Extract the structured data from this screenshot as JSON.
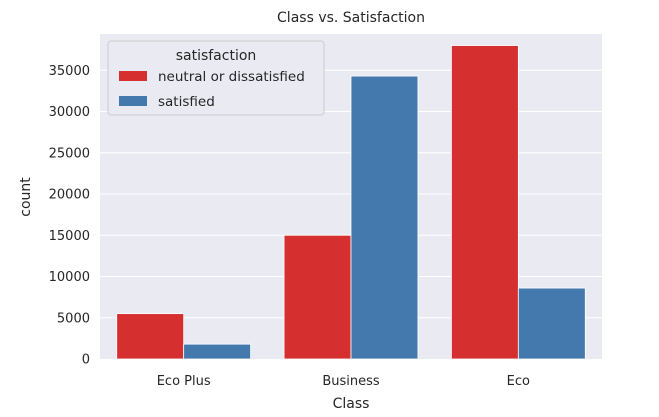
{
  "chart_data": {
    "type": "bar",
    "title": "Class vs. Satisfaction",
    "xlabel": "Class",
    "ylabel": "count",
    "categories": [
      "Eco Plus",
      "Business",
      "Eco"
    ],
    "series": [
      {
        "name": "neutral or dissatisfied",
        "values": [
          5500,
          15000,
          38000
        ],
        "color": "#d62f2f"
      },
      {
        "name": "satisfied",
        "values": [
          1800,
          34300,
          8600
        ],
        "color": "#4479ad"
      }
    ],
    "ylim": [
      0,
      39400
    ],
    "yticks": [
      0,
      5000,
      10000,
      15000,
      20000,
      25000,
      30000,
      35000
    ],
    "grid": true,
    "legend": {
      "title": "satisfaction",
      "placement": "top-left"
    },
    "colors": {
      "background": "#eaeaf2",
      "grid": "#ffffff",
      "text": "#262626"
    }
  }
}
